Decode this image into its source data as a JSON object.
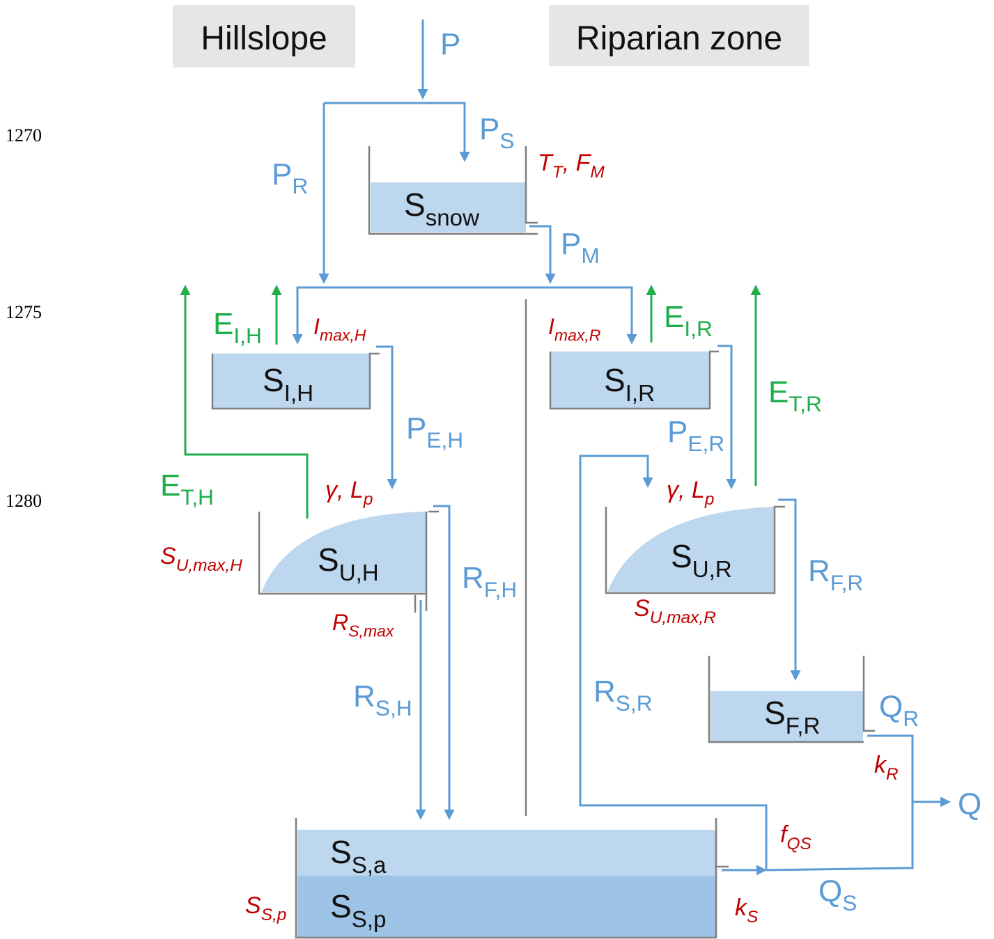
{
  "line_numbers": [
    "1270",
    "1275",
    "1280"
  ],
  "headers": {
    "hillslope": "Hillslope",
    "riparian": "Riparian zone"
  },
  "labels": [
    {
      "parts": [
        {
          "text": "P"
        }
      ],
      "color": "#5b9bd5"
    },
    {
      "parts": [
        {
          "text": "P"
        },
        {
          "sub": "S"
        }
      ],
      "color": "#5b9bd5"
    },
    {
      "parts": [
        {
          "text": "P"
        },
        {
          "sub": "R"
        }
      ],
      "color": "#5b9bd5"
    },
    {
      "parts": [
        {
          "text": "P"
        },
        {
          "sub": "M"
        }
      ],
      "color": "#5b9bd5"
    },
    {
      "parts": [
        {
          "text": "P"
        },
        {
          "sub": "E,H"
        }
      ],
      "color": "#5b9bd5"
    },
    {
      "parts": [
        {
          "text": "P"
        },
        {
          "sub": "E,R"
        }
      ],
      "color": "#5b9bd5"
    },
    {
      "parts": [
        {
          "text": "R"
        },
        {
          "sub": "F,H"
        }
      ],
      "color": "#5b9bd5"
    },
    {
      "parts": [
        {
          "text": "R"
        },
        {
          "sub": "F,R"
        }
      ],
      "color": "#5b9bd5"
    },
    {
      "parts": [
        {
          "text": "R"
        },
        {
          "sub": "S,H"
        }
      ],
      "color": "#5b9bd5"
    },
    {
      "parts": [
        {
          "text": "R"
        },
        {
          "sub": "S,R"
        }
      ],
      "color": "#5b9bd5"
    },
    {
      "parts": [
        {
          "text": "Q"
        },
        {
          "sub": "R"
        }
      ],
      "color": "#5b9bd5"
    },
    {
      "parts": [
        {
          "text": "Q"
        }
      ],
      "color": "#5b9bd5"
    },
    {
      "parts": [
        {
          "text": "Q"
        },
        {
          "sub": "S"
        }
      ],
      "color": "#5b9bd5"
    },
    {
      "parts": [
        {
          "text": "E"
        },
        {
          "sub": "I,H"
        }
      ],
      "color": "#1fae4b"
    },
    {
      "parts": [
        {
          "text": "E"
        },
        {
          "sub": "I,R"
        }
      ],
      "color": "#1fae4b"
    },
    {
      "parts": [
        {
          "text": "E"
        },
        {
          "sub": "T,R"
        }
      ],
      "color": "#1fae4b"
    },
    {
      "parts": [
        {
          "text": "E"
        },
        {
          "sub": "T,H"
        }
      ],
      "color": "#1fae4b"
    },
    {
      "parts": [
        {
          "text": "T"
        },
        {
          "sub": "T"
        },
        {
          "text": ", F"
        },
        {
          "sub": "M"
        }
      ],
      "color": "#c00000",
      "italic": true
    },
    {
      "parts": [
        {
          "text": "I"
        },
        {
          "sub": "max,H"
        }
      ],
      "color": "#c00000",
      "italic": true
    },
    {
      "parts": [
        {
          "text": "I"
        },
        {
          "sub": "max,R"
        }
      ],
      "color": "#c00000",
      "italic": true
    },
    {
      "parts": [
        {
          "text": "γ, L"
        },
        {
          "sub": "p"
        }
      ],
      "color": "#c00000",
      "italic": true
    },
    {
      "parts": [
        {
          "text": "γ, L"
        },
        {
          "sub": "p"
        }
      ],
      "color": "#c00000",
      "italic": true
    },
    {
      "parts": [
        {
          "text": "S"
        },
        {
          "sub": "U,max,H"
        }
      ],
      "color": "#c00000",
      "italic": true
    },
    {
      "parts": [
        {
          "text": "S"
        },
        {
          "sub": "U,max,R"
        }
      ],
      "color": "#c00000",
      "italic": true
    },
    {
      "parts": [
        {
          "text": "R"
        },
        {
          "sub": "S,max"
        }
      ],
      "color": "#c00000",
      "italic": true
    },
    {
      "parts": [
        {
          "text": "k"
        },
        {
          "sub": "R"
        }
      ],
      "color": "#c00000",
      "italic": true
    },
    {
      "parts": [
        {
          "text": "f"
        },
        {
          "sub": "QS"
        }
      ],
      "color": "#c00000",
      "italic": true
    },
    {
      "parts": [
        {
          "text": "k"
        },
        {
          "sub": "S"
        }
      ],
      "color": "#c00000",
      "italic": true
    },
    {
      "parts": [
        {
          "text": "S"
        },
        {
          "sub": "S,p"
        }
      ],
      "color": "#c00000",
      "italic": true
    }
  ],
  "stores": [
    {
      "parts": [
        {
          "text": "S"
        },
        {
          "sub": "snow"
        }
      ]
    },
    {
      "parts": [
        {
          "text": "S"
        },
        {
          "sub": "I,H"
        }
      ]
    },
    {
      "parts": [
        {
          "text": "S"
        },
        {
          "sub": "I,R"
        }
      ]
    },
    {
      "parts": [
        {
          "text": "S"
        },
        {
          "sub": "U,H"
        }
      ]
    },
    {
      "parts": [
        {
          "text": "S"
        },
        {
          "sub": "U,R"
        }
      ]
    },
    {
      "parts": [
        {
          "text": "S"
        },
        {
          "sub": "F,R"
        }
      ]
    },
    {
      "parts": [
        {
          "text": "S"
        },
        {
          "sub": "S,a"
        }
      ]
    },
    {
      "parts": [
        {
          "text": "S"
        },
        {
          "sub": "S,p"
        }
      ]
    }
  ]
}
